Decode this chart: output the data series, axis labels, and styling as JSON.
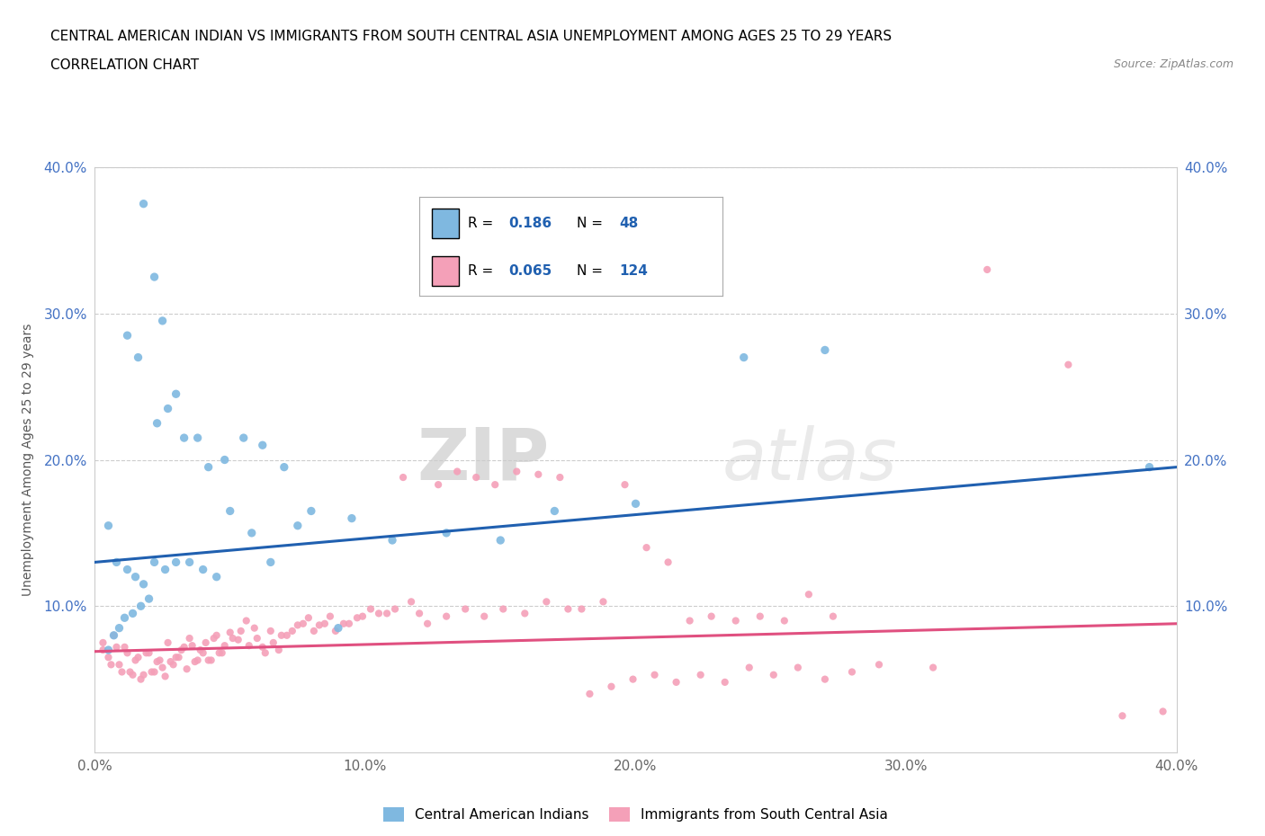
{
  "title_line1": "CENTRAL AMERICAN INDIAN VS IMMIGRANTS FROM SOUTH CENTRAL ASIA UNEMPLOYMENT AMONG AGES 25 TO 29 YEARS",
  "title_line2": "CORRELATION CHART",
  "source": "Source: ZipAtlas.com",
  "ylabel": "Unemployment Among Ages 25 to 29 years",
  "xlim": [
    0.0,
    0.4
  ],
  "ylim": [
    0.0,
    0.4
  ],
  "xtick_labels": [
    "0.0%",
    "10.0%",
    "20.0%",
    "30.0%",
    "40.0%"
  ],
  "xtick_vals": [
    0.0,
    0.1,
    0.2,
    0.3,
    0.4
  ],
  "ytick_labels": [
    "10.0%",
    "20.0%",
    "30.0%",
    "40.0%"
  ],
  "ytick_vals": [
    0.1,
    0.2,
    0.3,
    0.4
  ],
  "blue_color": "#7fb8e0",
  "pink_color": "#f4a0b8",
  "blue_line_color": "#2060b0",
  "pink_line_color": "#e05080",
  "legend_label_blue": "Central American Indians",
  "legend_label_pink": "Immigrants from South Central Asia",
  "watermark_zip": "ZIP",
  "watermark_atlas": "atlas",
  "blue_scatter_x": [
    0.018,
    0.022,
    0.025,
    0.012,
    0.016,
    0.005,
    0.007,
    0.009,
    0.011,
    0.014,
    0.017,
    0.02,
    0.023,
    0.027,
    0.03,
    0.033,
    0.038,
    0.042,
    0.048,
    0.055,
    0.062,
    0.07,
    0.08,
    0.095,
    0.11,
    0.13,
    0.15,
    0.17,
    0.2,
    0.24,
    0.005,
    0.008,
    0.012,
    0.015,
    0.018,
    0.022,
    0.026,
    0.03,
    0.035,
    0.04,
    0.045,
    0.05,
    0.058,
    0.065,
    0.075,
    0.09,
    0.27,
    0.39
  ],
  "blue_scatter_y": [
    0.375,
    0.325,
    0.295,
    0.285,
    0.27,
    0.07,
    0.08,
    0.085,
    0.092,
    0.095,
    0.1,
    0.105,
    0.225,
    0.235,
    0.245,
    0.215,
    0.215,
    0.195,
    0.2,
    0.215,
    0.21,
    0.195,
    0.165,
    0.16,
    0.145,
    0.15,
    0.145,
    0.165,
    0.17,
    0.27,
    0.155,
    0.13,
    0.125,
    0.12,
    0.115,
    0.13,
    0.125,
    0.13,
    0.13,
    0.125,
    0.12,
    0.165,
    0.15,
    0.13,
    0.155,
    0.085,
    0.275,
    0.195
  ],
  "pink_scatter_x": [
    0.003,
    0.005,
    0.007,
    0.009,
    0.011,
    0.013,
    0.015,
    0.017,
    0.019,
    0.021,
    0.023,
    0.025,
    0.027,
    0.029,
    0.031,
    0.033,
    0.035,
    0.037,
    0.039,
    0.041,
    0.043,
    0.045,
    0.047,
    0.05,
    0.053,
    0.056,
    0.059,
    0.062,
    0.065,
    0.068,
    0.071,
    0.075,
    0.079,
    0.083,
    0.087,
    0.092,
    0.097,
    0.102,
    0.108,
    0.114,
    0.12,
    0.127,
    0.134,
    0.141,
    0.148,
    0.156,
    0.164,
    0.172,
    0.18,
    0.188,
    0.196,
    0.204,
    0.212,
    0.22,
    0.228,
    0.237,
    0.246,
    0.255,
    0.264,
    0.273,
    0.003,
    0.006,
    0.008,
    0.01,
    0.012,
    0.014,
    0.016,
    0.018,
    0.02,
    0.022,
    0.024,
    0.026,
    0.028,
    0.03,
    0.032,
    0.034,
    0.036,
    0.038,
    0.04,
    0.042,
    0.044,
    0.046,
    0.048,
    0.051,
    0.054,
    0.057,
    0.06,
    0.063,
    0.066,
    0.069,
    0.073,
    0.077,
    0.081,
    0.085,
    0.089,
    0.094,
    0.099,
    0.105,
    0.111,
    0.117,
    0.123,
    0.13,
    0.137,
    0.144,
    0.151,
    0.159,
    0.167,
    0.175,
    0.183,
    0.191,
    0.199,
    0.207,
    0.215,
    0.224,
    0.233,
    0.242,
    0.251,
    0.26,
    0.27,
    0.28,
    0.29,
    0.31,
    0.33,
    0.36,
    0.38,
    0.395
  ],
  "pink_scatter_y": [
    0.075,
    0.065,
    0.08,
    0.06,
    0.072,
    0.055,
    0.063,
    0.05,
    0.068,
    0.055,
    0.062,
    0.058,
    0.075,
    0.06,
    0.065,
    0.072,
    0.078,
    0.062,
    0.07,
    0.075,
    0.063,
    0.08,
    0.068,
    0.082,
    0.077,
    0.09,
    0.085,
    0.072,
    0.083,
    0.07,
    0.08,
    0.087,
    0.092,
    0.087,
    0.093,
    0.088,
    0.092,
    0.098,
    0.095,
    0.188,
    0.095,
    0.183,
    0.192,
    0.188,
    0.183,
    0.192,
    0.19,
    0.188,
    0.098,
    0.103,
    0.183,
    0.14,
    0.13,
    0.09,
    0.093,
    0.09,
    0.093,
    0.09,
    0.108,
    0.093,
    0.07,
    0.06,
    0.072,
    0.055,
    0.068,
    0.053,
    0.065,
    0.053,
    0.068,
    0.055,
    0.063,
    0.052,
    0.062,
    0.065,
    0.07,
    0.057,
    0.073,
    0.063,
    0.068,
    0.063,
    0.078,
    0.068,
    0.073,
    0.078,
    0.083,
    0.073,
    0.078,
    0.068,
    0.075,
    0.08,
    0.083,
    0.088,
    0.083,
    0.088,
    0.083,
    0.088,
    0.093,
    0.095,
    0.098,
    0.103,
    0.088,
    0.093,
    0.098,
    0.093,
    0.098,
    0.095,
    0.103,
    0.098,
    0.04,
    0.045,
    0.05,
    0.053,
    0.048,
    0.053,
    0.048,
    0.058,
    0.053,
    0.058,
    0.05,
    0.055,
    0.06,
    0.058,
    0.33,
    0.265,
    0.025,
    0.028
  ]
}
